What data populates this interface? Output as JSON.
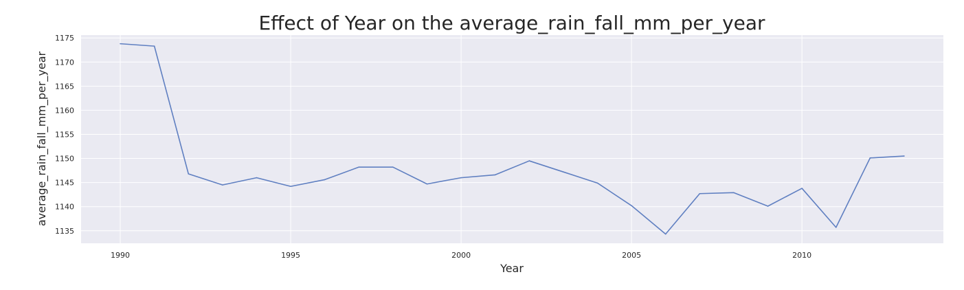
{
  "chart_data": {
    "type": "line",
    "title": "Effect of Year on the average_rain_fall_mm_per_year",
    "xlabel": "Year",
    "ylabel": "average_rain_fall_mm_per_year",
    "xlim": [
      1988.85,
      2014.15
    ],
    "ylim": [
      1132.4,
      1175.6
    ],
    "xticks": [
      1990,
      1995,
      2000,
      2005,
      2010
    ],
    "yticks": [
      1135,
      1140,
      1145,
      1150,
      1155,
      1160,
      1165,
      1170,
      1175
    ],
    "grid": true,
    "legend": "none",
    "colors": {
      "line": "#5f7fc1",
      "plot_background": "#eaeaf2",
      "grid": "#ffffff"
    },
    "series": [
      {
        "x": [
          1990,
          1991,
          1992,
          1993,
          1994,
          1995,
          1996,
          1997,
          1998,
          1999,
          2000,
          2001,
          2002,
          2003,
          2004,
          2005,
          2006,
          2007,
          2008,
          2009,
          2010,
          2011,
          2012,
          2013
        ],
        "values": [
          1173.8,
          1173.3,
          1146.8,
          1144.5,
          1146.0,
          1144.2,
          1145.6,
          1148.2,
          1148.2,
          1144.7,
          1146.0,
          1146.6,
          1149.5,
          1147.2,
          1144.9,
          1140.2,
          1134.3,
          1142.7,
          1142.9,
          1140.1,
          1143.8,
          1135.7,
          1150.1,
          1150.5
        ]
      }
    ]
  }
}
